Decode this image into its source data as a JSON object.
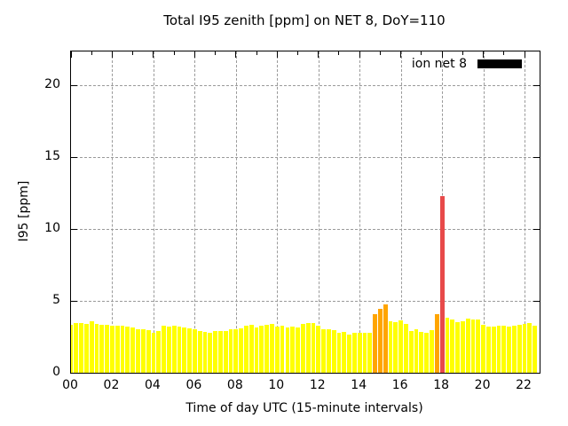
{
  "title": "Total I95 zenith [ppm] on NET 8, DoY=110",
  "legend": {
    "label": "ion net 8",
    "swatch_color": "#000000"
  },
  "chart_data": {
    "type": "bar",
    "title": "Total I95 zenith [ppm] on NET 8, DoY=110",
    "xlabel": "Time of day UTC (15-minute intervals)",
    "ylabel": "I95 [ppm]",
    "ylim": [
      0,
      22.35
    ],
    "xlim_hours": [
      0,
      22.73
    ],
    "grid": true,
    "legend_entry": "ion net 8",
    "legend_position": "top-right-inside",
    "y_ticks": [
      0,
      5,
      10,
      15,
      20
    ],
    "x_tick_hours": [
      0,
      2,
      4,
      6,
      8,
      10,
      12,
      14,
      16,
      18,
      20,
      22
    ],
    "x_tick_labels": [
      "00",
      "02",
      "04",
      "06",
      "08",
      "10",
      "12",
      "14",
      "16",
      "18",
      "20",
      "22"
    ],
    "x_minor_tick_hours": [
      1,
      3,
      5,
      7,
      9,
      11,
      13,
      15,
      17,
      19,
      21
    ],
    "start_time": "00:00",
    "interval_minutes": 15,
    "palette": {
      "y": "#ffff00",
      "o": "#ffa500",
      "r": "#e84a4a"
    },
    "values": [
      3.35,
      3.45,
      3.45,
      3.4,
      3.6,
      3.4,
      3.35,
      3.35,
      3.3,
      3.25,
      3.3,
      3.2,
      3.15,
      3.05,
      3.05,
      2.95,
      2.8,
      2.9,
      3.25,
      3.2,
      3.25,
      3.2,
      3.15,
      3.1,
      3.0,
      2.9,
      2.85,
      2.75,
      2.9,
      2.9,
      2.9,
      3.0,
      3.05,
      3.1,
      3.3,
      3.35,
      3.15,
      3.3,
      3.35,
      3.4,
      3.2,
      3.25,
      3.15,
      3.2,
      3.15,
      3.4,
      3.45,
      3.45,
      3.25,
      3.0,
      3.05,
      2.95,
      2.75,
      2.85,
      2.65,
      2.8,
      2.8,
      2.8,
      2.8,
      4.05,
      4.45,
      4.75,
      3.6,
      3.5,
      3.65,
      3.4,
      2.9,
      3.0,
      2.85,
      2.75,
      2.95,
      4.05,
      12.3,
      3.85,
      3.7,
      3.55,
      3.6,
      3.75,
      3.7,
      3.7,
      3.35,
      3.2,
      3.2,
      3.25,
      3.3,
      3.2,
      3.3,
      3.35,
      3.4,
      3.45,
      3.3
    ],
    "colors": [
      "y",
      "y",
      "y",
      "y",
      "y",
      "y",
      "y",
      "y",
      "y",
      "y",
      "y",
      "y",
      "y",
      "y",
      "y",
      "y",
      "y",
      "y",
      "y",
      "y",
      "y",
      "y",
      "y",
      "y",
      "y",
      "y",
      "y",
      "y",
      "y",
      "y",
      "y",
      "y",
      "y",
      "y",
      "y",
      "y",
      "y",
      "y",
      "y",
      "y",
      "y",
      "y",
      "y",
      "y",
      "y",
      "y",
      "y",
      "y",
      "y",
      "y",
      "y",
      "y",
      "y",
      "y",
      "y",
      "y",
      "y",
      "y",
      "y",
      "o",
      "o",
      "o",
      "y",
      "y",
      "y",
      "y",
      "y",
      "y",
      "y",
      "y",
      "y",
      "o",
      "r",
      "y",
      "y",
      "y",
      "y",
      "y",
      "y",
      "y",
      "y",
      "y",
      "y",
      "y",
      "y",
      "y",
      "y",
      "y",
      "y",
      "y",
      "y"
    ]
  }
}
